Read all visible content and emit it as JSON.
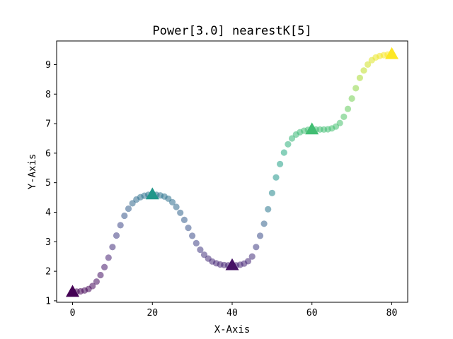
{
  "chart_data": {
    "type": "scatter",
    "title": "Power[3.0] nearestK[5]",
    "xlabel": "X-Axis",
    "ylabel": "Y-Axis",
    "xlim": [
      -4,
      84
    ],
    "ylim": [
      0.95,
      9.8
    ],
    "xticks": [
      0,
      20,
      40,
      60,
      80
    ],
    "xtick_labels": [
      "0",
      "20",
      "40",
      "60",
      "80"
    ],
    "yticks": [
      1,
      2,
      3,
      4,
      5,
      6,
      7,
      8,
      9
    ],
    "ytick_labels": [
      "1",
      "2",
      "3",
      "4",
      "5",
      "6",
      "7",
      "8",
      "9"
    ],
    "grid": false,
    "colormap": "viridis",
    "colormap_stops": [
      "#440154",
      "#482475",
      "#414487",
      "#355f8d",
      "#2a788e",
      "#21918c",
      "#22a884",
      "#44bf70",
      "#7ad151",
      "#bddf26",
      "#fde725"
    ],
    "key_points": {
      "marker": "triangle",
      "x": [
        0,
        20,
        40,
        60,
        80
      ],
      "y": [
        1.3,
        4.6,
        2.2,
        6.8,
        9.35
      ],
      "color_values": [
        0.0,
        0.52,
        0.05,
        0.69,
        1.0
      ]
    },
    "interpolated_points": {
      "marker": "circle",
      "alpha": 0.55,
      "x": [
        0.0,
        1.0,
        2.0,
        3.0,
        4.0,
        5.0,
        6.0,
        7.0,
        8.0,
        9.0,
        10.0,
        11.0,
        12.0,
        13.0,
        14.0,
        15.0,
        16.0,
        17.0,
        18.0,
        19.0,
        20.0,
        21.0,
        22.0,
        23.0,
        24.0,
        25.0,
        26.0,
        27.0,
        28.0,
        29.0,
        30.0,
        31.0,
        32.0,
        33.0,
        34.0,
        35.0,
        36.0,
        37.0,
        38.0,
        39.0,
        40.0,
        41.0,
        42.0,
        43.0,
        44.0,
        45.0,
        46.0,
        47.0,
        48.0,
        49.0,
        50.0,
        51.0,
        52.0,
        53.0,
        54.0,
        55.0,
        56.0,
        57.0,
        58.0,
        59.0,
        60.0,
        61.0,
        62.0,
        63.0,
        64.0,
        65.0,
        66.0,
        67.0,
        68.0,
        69.0,
        70.0,
        71.0,
        72.0,
        73.0,
        74.0,
        75.0,
        76.0,
        77.0,
        78.0,
        79.0,
        80.0
      ],
      "y": [
        1.3,
        1.31,
        1.32,
        1.35,
        1.4,
        1.5,
        1.65,
        1.87,
        2.14,
        2.46,
        2.82,
        3.21,
        3.56,
        3.88,
        4.12,
        4.3,
        4.43,
        4.51,
        4.56,
        4.59,
        4.6,
        4.59,
        4.57,
        4.53,
        4.46,
        4.34,
        4.18,
        3.98,
        3.74,
        3.47,
        3.2,
        2.95,
        2.73,
        2.56,
        2.43,
        2.33,
        2.27,
        2.23,
        2.21,
        2.2,
        2.2,
        2.2,
        2.22,
        2.26,
        2.34,
        2.5,
        2.82,
        3.2,
        3.61,
        4.1,
        4.65,
        5.18,
        5.63,
        6.02,
        6.3,
        6.5,
        6.63,
        6.71,
        6.76,
        6.79,
        6.8,
        6.8,
        6.8,
        6.8,
        6.81,
        6.84,
        6.9,
        7.02,
        7.23,
        7.5,
        7.85,
        8.2,
        8.55,
        8.8,
        9.0,
        9.15,
        9.24,
        9.29,
        9.32,
        9.34,
        9.35
      ],
      "color_values": [
        0.0,
        0.0,
        0.0,
        0.01,
        0.01,
        0.02,
        0.03,
        0.05,
        0.07,
        0.1,
        0.14,
        0.18,
        0.22,
        0.27,
        0.3,
        0.33,
        0.35,
        0.37,
        0.38,
        0.38,
        0.38,
        0.38,
        0.38,
        0.38,
        0.37,
        0.36,
        0.34,
        0.32,
        0.29,
        0.26,
        0.23,
        0.2,
        0.17,
        0.15,
        0.13,
        0.12,
        0.11,
        0.11,
        0.11,
        0.11,
        0.11,
        0.11,
        0.11,
        0.11,
        0.12,
        0.14,
        0.18,
        0.23,
        0.31,
        0.39,
        0.46,
        0.52,
        0.57,
        0.61,
        0.64,
        0.66,
        0.67,
        0.68,
        0.69,
        0.69,
        0.69,
        0.69,
        0.69,
        0.69,
        0.69,
        0.7,
        0.7,
        0.71,
        0.73,
        0.76,
        0.79,
        0.83,
        0.87,
        0.9,
        0.93,
        0.95,
        0.97,
        0.98,
        0.99,
        1.0,
        1.0
      ]
    }
  }
}
